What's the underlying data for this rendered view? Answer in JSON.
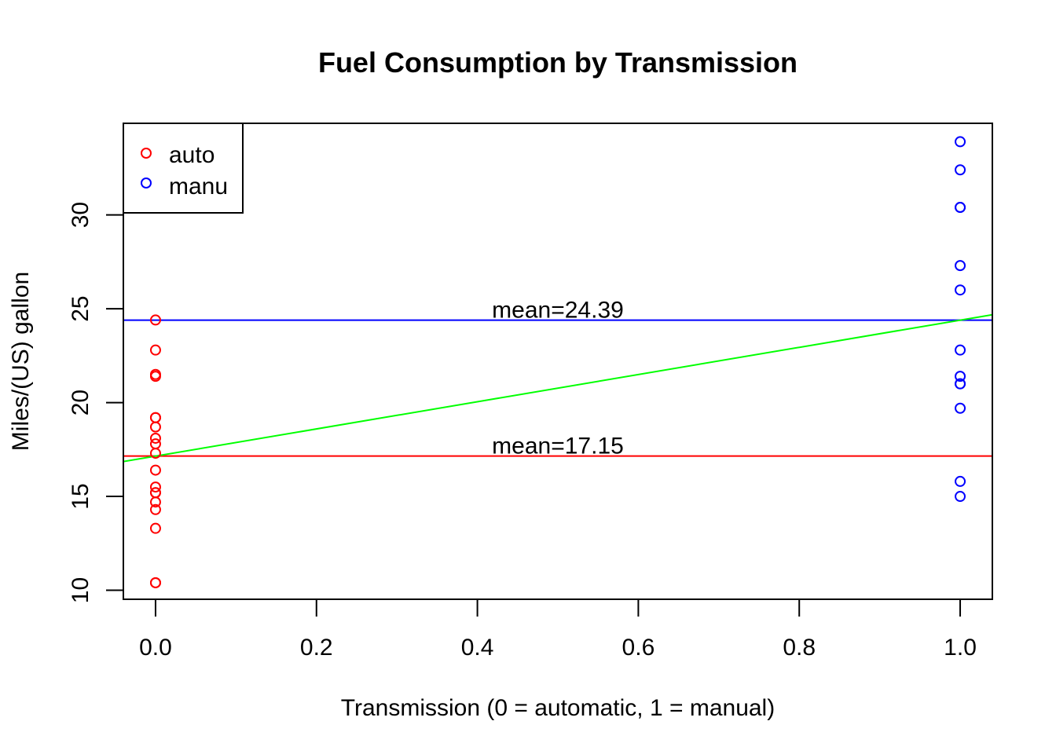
{
  "chart_data": {
    "type": "scatter",
    "title": "Fuel Consumption by Transmission",
    "xlabel": "Transmission (0 = automatic, 1 = manual)",
    "ylabel": "Miles/(US) gallon",
    "xlim": [
      -0.04,
      1.04
    ],
    "ylim": [
      9.52,
      34.88
    ],
    "xticks": [
      0,
      0.2,
      0.4,
      0.6,
      0.8,
      1
    ],
    "xtick_labels": [
      "0.0",
      "0.2",
      "0.4",
      "0.6",
      "0.8",
      "1.0"
    ],
    "yticks": [
      10,
      15,
      20,
      25,
      30
    ],
    "ytick_labels": [
      "10",
      "15",
      "20",
      "25",
      "30"
    ],
    "grid": false,
    "legend": {
      "position": "top-left",
      "entries": [
        {
          "label": "auto",
          "color": "#ff0000"
        },
        {
          "label": "manu",
          "color": "#0000ff"
        }
      ]
    },
    "series": [
      {
        "name": "auto",
        "color": "#ff0000",
        "marker": "open-circle",
        "x": [
          0,
          0,
          0,
          0,
          0,
          0,
          0,
          0,
          0,
          0,
          0,
          0,
          0,
          0,
          0,
          0,
          0,
          0,
          0
        ],
        "y": [
          21.4,
          18.7,
          18.1,
          14.3,
          24.4,
          22.8,
          19.2,
          17.8,
          16.4,
          17.3,
          15.2,
          10.4,
          10.4,
          14.7,
          21.5,
          15.5,
          15.2,
          13.3,
          19.2
        ]
      },
      {
        "name": "manu",
        "color": "#0000ff",
        "marker": "open-circle",
        "x": [
          1,
          1,
          1,
          1,
          1,
          1,
          1,
          1,
          1,
          1,
          1,
          1,
          1
        ],
        "y": [
          21.0,
          21.0,
          22.8,
          32.4,
          30.4,
          33.9,
          27.3,
          26.0,
          30.4,
          15.8,
          19.7,
          15.0,
          21.4
        ]
      }
    ],
    "reference_lines": [
      {
        "type": "horizontal",
        "y": 24.39,
        "color": "#0000ff",
        "label": "mean=24.39",
        "label_x": 0.5
      },
      {
        "type": "horizontal",
        "y": 17.15,
        "color": "#ff0000",
        "label": "mean=17.15",
        "label_x": 0.5
      },
      {
        "type": "regression",
        "intercept": 17.147,
        "slope": 7.245,
        "color": "#00ff00"
      }
    ]
  }
}
